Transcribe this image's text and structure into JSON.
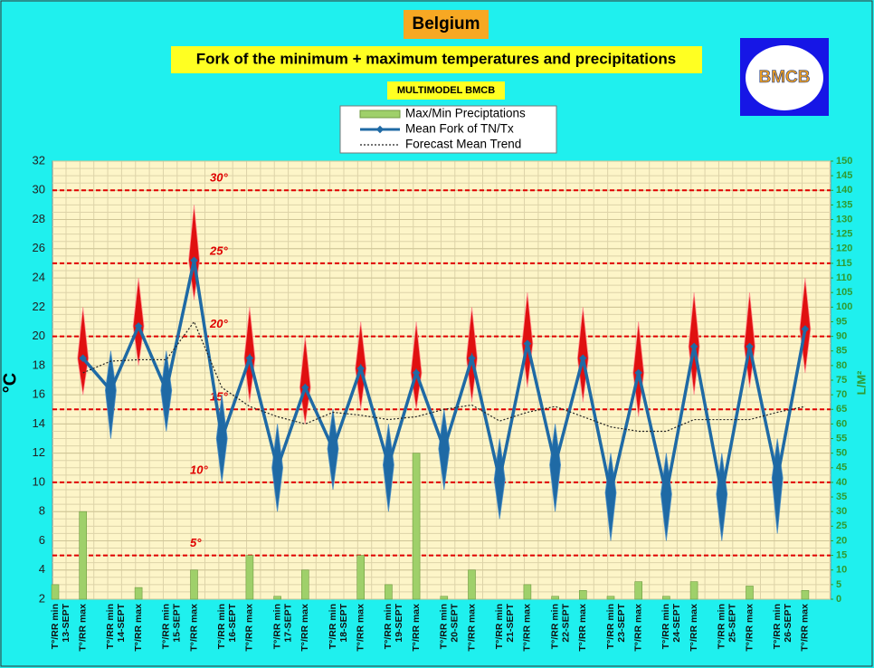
{
  "chart_data": {
    "type": "fork",
    "title": "Belgium",
    "subtitle": "Fork of the minimum + maximum temperatures and precipitations",
    "source": "MULTIMODEL BMCB",
    "logo": "BMCB",
    "ylabel": "°C",
    "y2label": "L/M²",
    "categories": [
      "T°/RR min",
      "T°/RR max",
      "T°/RR min",
      "T°/RR max",
      "T°/RR min",
      "T°/RR max",
      "T°/RR min",
      "T°/RR max",
      "T°/RR min",
      "T°/RR max",
      "T°/RR min",
      "T°/RR max",
      "T°/RR min",
      "T°/RR max",
      "T°/RR min",
      "T°/RR max",
      "T°/RR min",
      "T°/RR max",
      "T°/RR min",
      "T°/RR max",
      "T°/RR min",
      "T°/RR max",
      "T°/RR min",
      "T°/RR max",
      "T°/RR min",
      "T°/RR max",
      "T°/RR min",
      "T°/RR max"
    ],
    "dates": [
      "13-SEPT",
      "14-SEPT",
      "15-SEPT",
      "16-SEPT",
      "17-SEPT",
      "18-SEPT",
      "19-SEPT",
      "20-SEPT",
      "21-SEPT",
      "22-SEPT",
      "23-SEPT",
      "24-SEPT",
      "25-SEPT",
      "26-SEPT"
    ],
    "series": [
      {
        "name": "Max/Min Preciptations",
        "color": "#9fd06a",
        "axis": "y2",
        "values": [
          5,
          30,
          0,
          4,
          0,
          10,
          0,
          15,
          1,
          10,
          0,
          15,
          5,
          50,
          1,
          10,
          0,
          5,
          1,
          3,
          1,
          6,
          1,
          6,
          0,
          4.5,
          0,
          3
        ]
      },
      {
        "name": "Mean Fork of TN/Tx",
        "color": "#1f6aa5",
        "values": [
          null,
          18.5,
          16.3,
          20.7,
          16.3,
          25.2,
          13,
          18.5,
          11,
          16.5,
          12.3,
          17.8,
          11.2,
          17.5,
          12.3,
          18.5,
          10.2,
          19.5,
          11.2,
          18.5,
          9.3,
          17.5,
          9.2,
          19.3,
          9.2,
          19.3,
          10.3,
          20.5
        ]
      },
      {
        "name": "Forecast Mean Trend",
        "color": "#222222",
        "values": [
          null,
          17.5,
          18.3,
          18.4,
          18.4,
          21,
          16.5,
          15.2,
          14.5,
          14,
          14.8,
          14.6,
          14.3,
          14.5,
          15,
          15.3,
          14.2,
          14.8,
          15.2,
          14.5,
          13.8,
          13.5,
          13.5,
          14.3,
          14.3,
          14.3,
          14.8,
          15.2
        ]
      }
    ],
    "fork_low": [
      null,
      16,
      13,
      18,
      13.5,
      22.5,
      10,
      15.5,
      8,
      14,
      9.5,
      15,
      8,
      15,
      9.5,
      15.5,
      7.5,
      16.5,
      8,
      15.5,
      6,
      14.5,
      6,
      16,
      6,
      16.5,
      6.5,
      17.5
    ],
    "fork_high": [
      null,
      22,
      19,
      24,
      19,
      29,
      16,
      22,
      14,
      20,
      15,
      21,
      14,
      21,
      15,
      22,
      13,
      23,
      14,
      22,
      12,
      21,
      12,
      23,
      12,
      23,
      13,
      24
    ],
    "annotations": [
      {
        "label": "30°",
        "value": 30
      },
      {
        "label": "25°",
        "value": 25
      },
      {
        "label": "20°",
        "value": 20
      },
      {
        "label": "15°",
        "value": 15
      },
      {
        "label": "10°",
        "value": 10
      },
      {
        "label": "5°",
        "value": 5
      }
    ],
    "ylim": [
      2,
      32
    ],
    "yticks": [
      2,
      4,
      6,
      8,
      10,
      12,
      14,
      16,
      18,
      20,
      22,
      24,
      26,
      28,
      30,
      32
    ],
    "y2lim": [
      0,
      150
    ],
    "y2ticks": [
      0,
      5,
      10,
      15,
      20,
      25,
      30,
      35,
      40,
      45,
      50,
      55,
      60,
      65,
      70,
      75,
      80,
      85,
      90,
      95,
      100,
      105,
      110,
      115,
      120,
      125,
      130,
      135,
      140,
      145,
      150
    ],
    "grid": true
  }
}
